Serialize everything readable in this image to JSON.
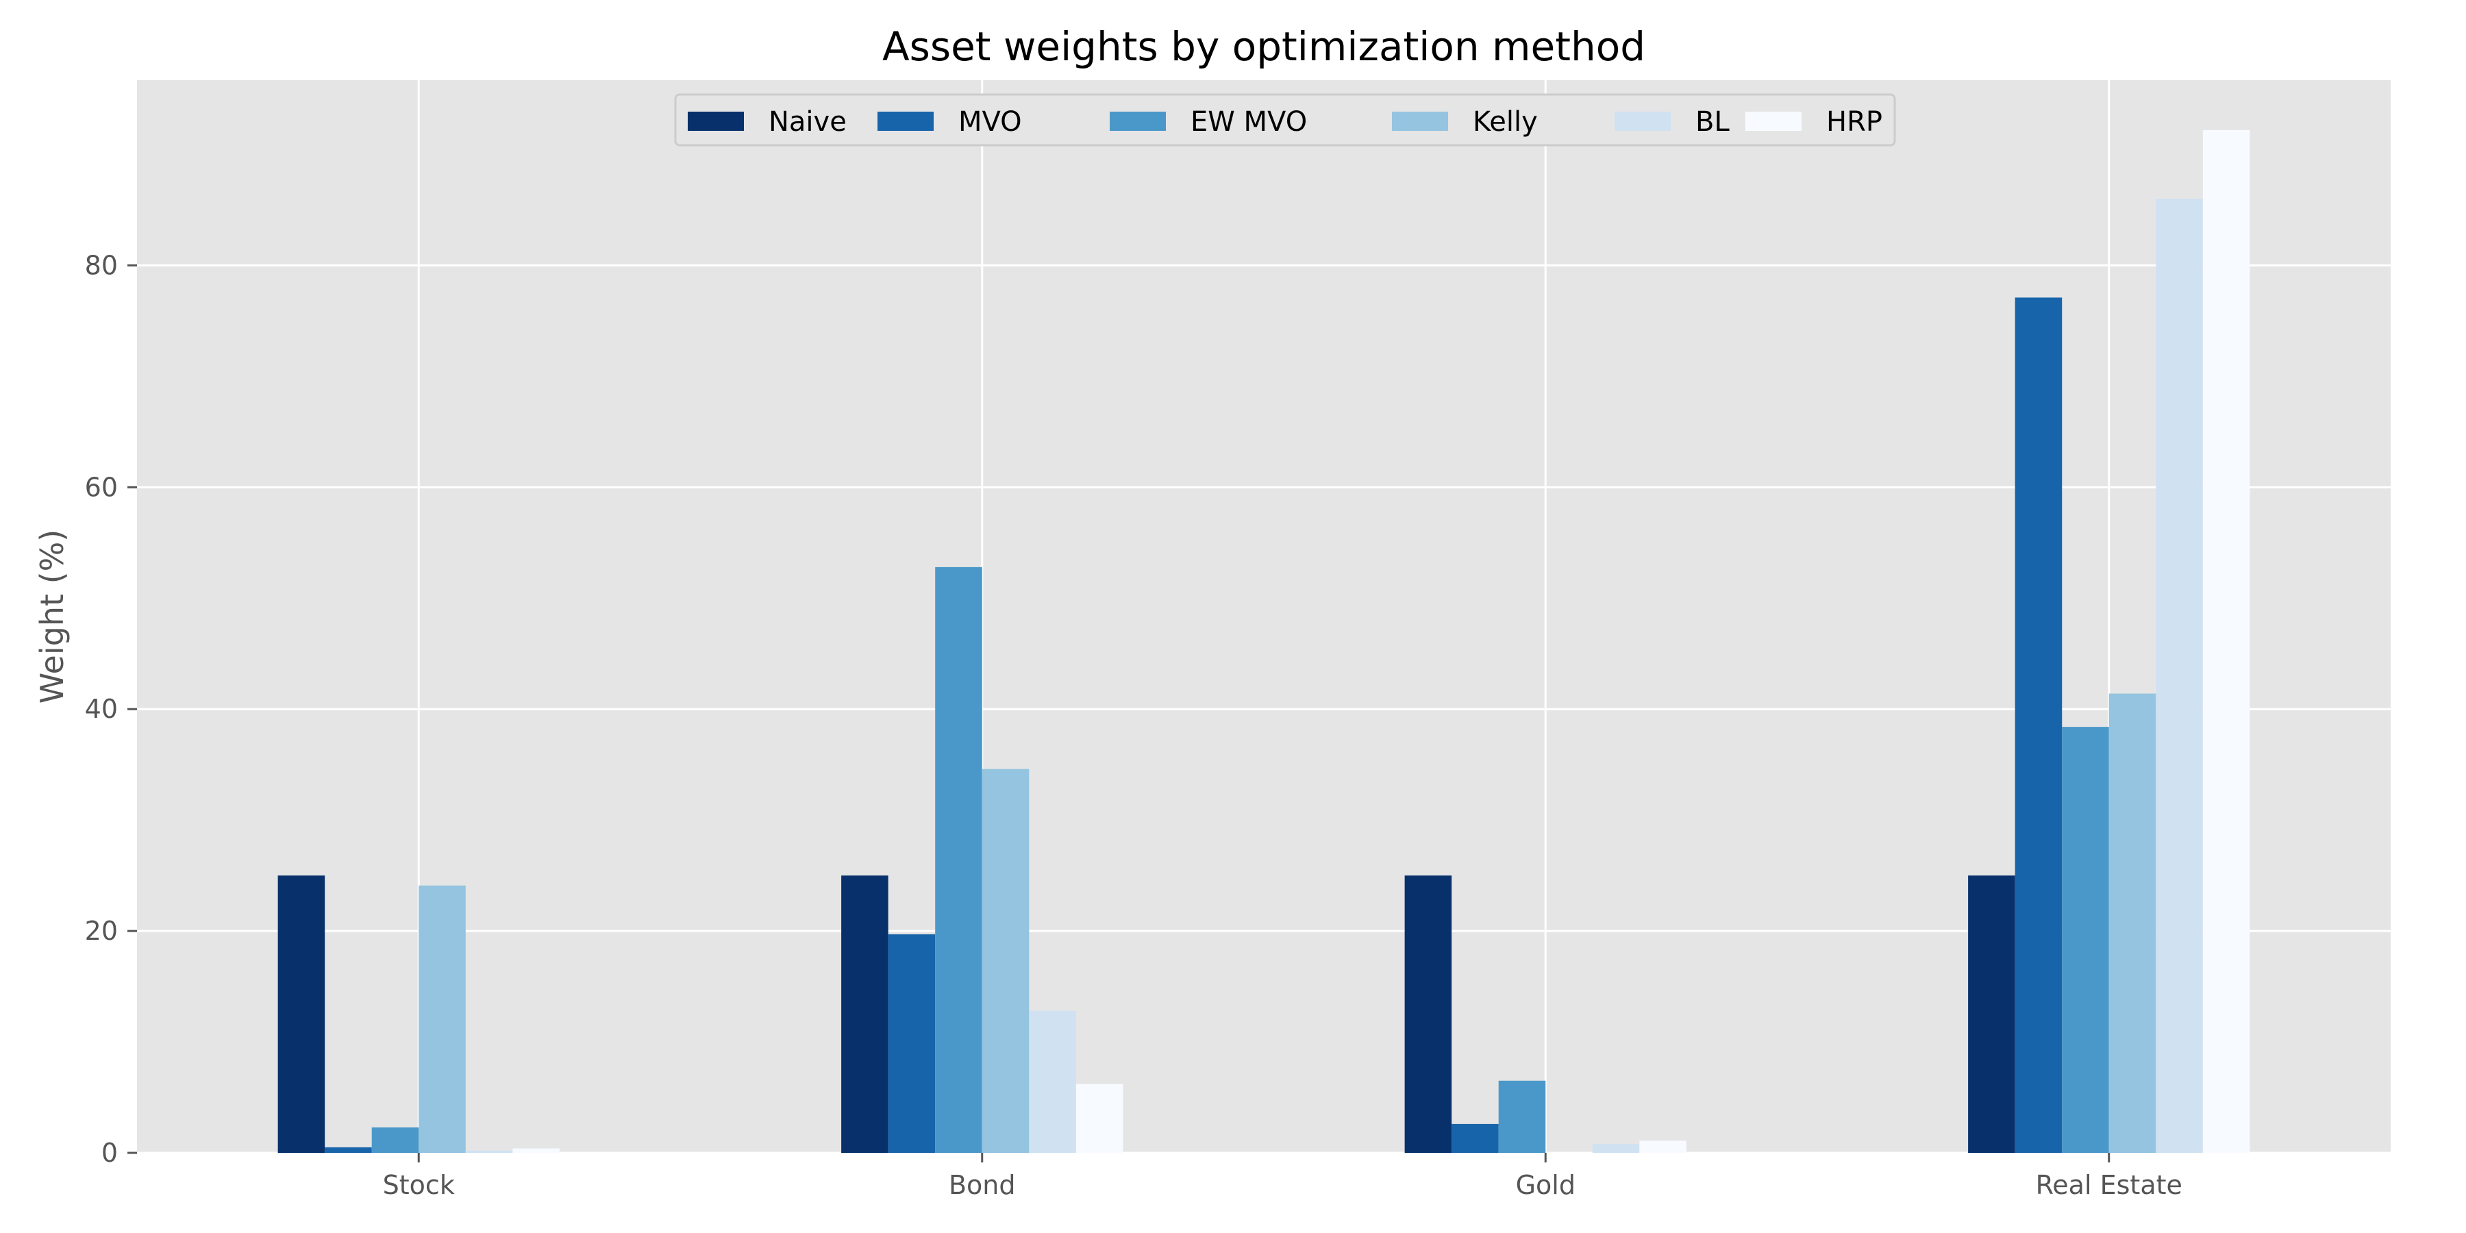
{
  "chart_data": {
    "type": "bar",
    "title": "Asset weights by optimization method",
    "xlabel": "",
    "ylabel": "Weight (%)",
    "categories": [
      "Stock",
      "Bond",
      "Gold",
      "Real Estate"
    ],
    "ylim": [
      0,
      96.7
    ],
    "yticks": [
      0,
      20,
      40,
      60,
      80
    ],
    "grid": true,
    "legend_position": "top-center",
    "series": [
      {
        "name": "Naive",
        "color": "#08306b",
        "values": [
          25.0,
          25.0,
          25.0,
          25.0
        ]
      },
      {
        "name": "MVO",
        "color": "#1764ab",
        "values": [
          0.5,
          19.7,
          2.6,
          77.1
        ]
      },
      {
        "name": "EW MVO",
        "color": "#4a98c9",
        "values": [
          2.3,
          52.8,
          6.5,
          38.4
        ]
      },
      {
        "name": "Kelly",
        "color": "#94c4df",
        "values": [
          24.1,
          34.6,
          0.0,
          41.4
        ]
      },
      {
        "name": "BL",
        "color": "#d0e1f2",
        "values": [
          0.2,
          12.8,
          0.8,
          86.0
        ]
      },
      {
        "name": "HRP",
        "color": "#f7fbff",
        "values": [
          0.4,
          6.2,
          1.1,
          92.2
        ]
      }
    ]
  },
  "style": {
    "plot_background": "#e5e5e5",
    "grid_color": "#ffffff",
    "legend_background": "#e5e5e5",
    "legend_border": "#cccccc"
  }
}
